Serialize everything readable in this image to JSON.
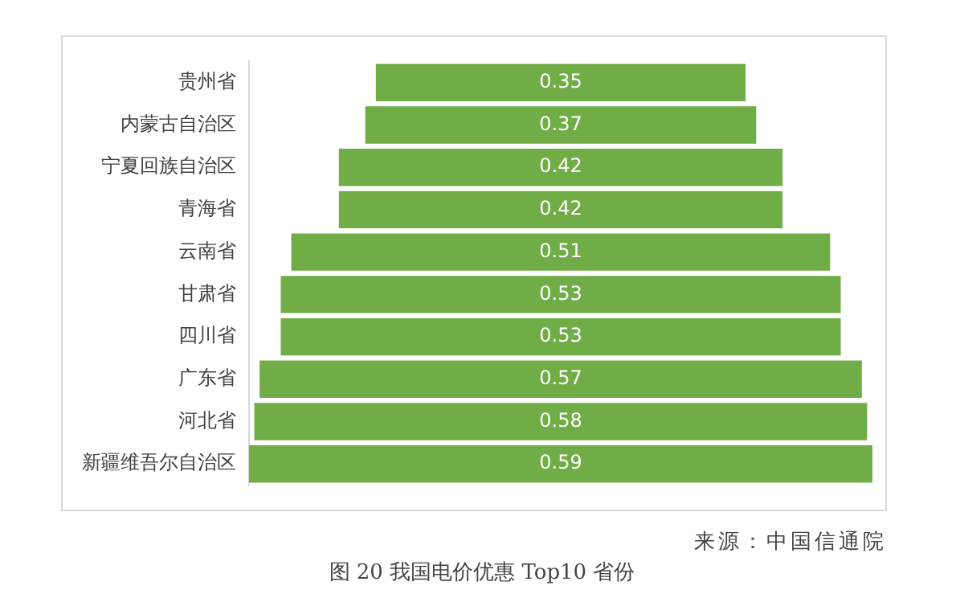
{
  "chart_data": {
    "type": "other",
    "title": "图 20 我国电价优惠 Top10 省份",
    "annotations": [
      "来源：中国信通院"
    ],
    "categories": [
      "贵州省",
      "内蒙古自治区",
      "宁夏回族自治区",
      "青海省",
      "云南省",
      "甘肃省",
      "四川省",
      "广东省",
      "河北省",
      "新疆维吾尔自治区"
    ],
    "values": [
      0.35,
      0.37,
      0.42,
      0.42,
      0.51,
      0.53,
      0.53,
      0.57,
      0.58,
      0.59
    ],
    "color": "#70ad47",
    "data_labels": true
  }
}
